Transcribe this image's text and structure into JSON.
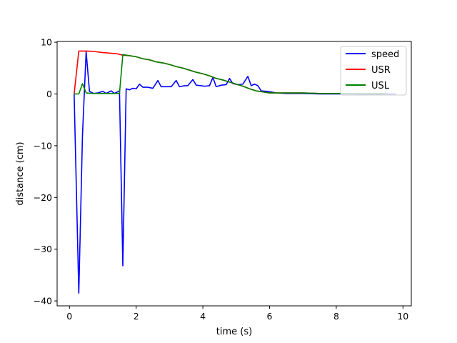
{
  "chart_data": {
    "type": "line",
    "title": "",
    "xlabel": "time (s)",
    "ylabel": "distance (cm)",
    "xlim": [
      -0.37,
      10.25
    ],
    "ylim": [
      -40.95,
      10.15
    ],
    "xticks": [
      0,
      2,
      4,
      6,
      8,
      10
    ],
    "yticks": [
      -40,
      -30,
      -20,
      -10,
      0,
      10
    ],
    "grid": false,
    "legend_position": "top-right",
    "series": [
      {
        "name": "speed",
        "color": "#0000ff",
        "points": [
          [
            0.14,
            0
          ],
          [
            0.28,
            -38.5
          ],
          [
            0.39,
            -8
          ],
          [
            0.5,
            8.2
          ],
          [
            0.6,
            0.5
          ],
          [
            0.72,
            0.1
          ],
          [
            0.85,
            0.2
          ],
          [
            1.0,
            0.5
          ],
          [
            1.1,
            0.1
          ],
          [
            1.25,
            0.6
          ],
          [
            1.35,
            0.1
          ],
          [
            1.5,
            0.6
          ],
          [
            1.6,
            -33.2
          ],
          [
            1.7,
            1.0
          ],
          [
            1.8,
            0.8
          ],
          [
            1.9,
            1.1
          ],
          [
            2.0,
            1.0
          ],
          [
            2.1,
            1.9
          ],
          [
            2.2,
            1.3
          ],
          [
            2.35,
            1.3
          ],
          [
            2.5,
            1.1
          ],
          [
            2.65,
            2.6
          ],
          [
            2.75,
            1.4
          ],
          [
            2.9,
            1.4
          ],
          [
            3.05,
            1.4
          ],
          [
            3.2,
            2.6
          ],
          [
            3.3,
            1.4
          ],
          [
            3.45,
            1.6
          ],
          [
            3.55,
            1.6
          ],
          [
            3.7,
            2.8
          ],
          [
            3.8,
            1.7
          ],
          [
            3.95,
            1.6
          ],
          [
            4.05,
            1.5
          ],
          [
            4.2,
            1.6
          ],
          [
            4.3,
            3.2
          ],
          [
            4.4,
            1.4
          ],
          [
            4.55,
            1.7
          ],
          [
            4.7,
            1.8
          ],
          [
            4.8,
            3.0
          ],
          [
            4.9,
            2.0
          ],
          [
            5.05,
            1.8
          ],
          [
            5.2,
            1.9
          ],
          [
            5.35,
            3.4
          ],
          [
            5.45,
            1.6
          ],
          [
            5.55,
            1.9
          ],
          [
            5.65,
            1.6
          ],
          [
            5.75,
            0.6
          ],
          [
            5.95,
            0.5
          ],
          [
            6.2,
            0.2
          ],
          [
            6.5,
            0.1
          ],
          [
            7.0,
            0.1
          ],
          [
            7.5,
            0.0
          ],
          [
            8.0,
            0.0
          ],
          [
            8.5,
            0.0
          ],
          [
            9.0,
            -0.1
          ],
          [
            9.5,
            0.0
          ],
          [
            9.8,
            0.0
          ]
        ]
      },
      {
        "name": "USR",
        "color": "#ff0000",
        "points": [
          [
            0.14,
            0
          ],
          [
            0.28,
            8.3
          ],
          [
            0.5,
            8.3
          ],
          [
            0.75,
            8.2
          ],
          [
            1.0,
            8.0
          ],
          [
            1.2,
            7.9
          ],
          [
            1.4,
            7.8
          ],
          [
            1.6,
            7.5
          ],
          [
            1.8,
            7.4
          ],
          [
            2.0,
            7.2
          ],
          [
            2.2,
            6.8
          ],
          [
            2.4,
            6.6
          ],
          [
            2.6,
            6.2
          ],
          [
            2.8,
            6.0
          ],
          [
            3.0,
            5.7
          ],
          [
            3.2,
            5.3
          ],
          [
            3.4,
            5.0
          ],
          [
            3.6,
            4.6
          ],
          [
            3.8,
            4.2
          ],
          [
            4.0,
            3.9
          ],
          [
            4.2,
            3.5
          ],
          [
            4.4,
            3.0
          ],
          [
            4.6,
            2.7
          ],
          [
            4.8,
            2.3
          ],
          [
            5.0,
            1.9
          ],
          [
            5.2,
            1.5
          ],
          [
            5.4,
            1.0
          ],
          [
            5.6,
            0.6
          ],
          [
            5.8,
            0.4
          ],
          [
            6.0,
            0.2
          ],
          [
            6.5,
            0.2
          ],
          [
            7.0,
            0.2
          ],
          [
            7.5,
            0.1
          ],
          [
            8.0,
            0.1
          ],
          [
            8.5,
            0.1
          ],
          [
            9.0,
            0.1
          ],
          [
            9.5,
            0.1
          ]
        ]
      },
      {
        "name": "USL",
        "color": "#008000",
        "points": [
          [
            0.14,
            0
          ],
          [
            0.28,
            0.0
          ],
          [
            0.39,
            2.0
          ],
          [
            0.5,
            0.2
          ],
          [
            0.7,
            0.1
          ],
          [
            1.0,
            0.1
          ],
          [
            1.3,
            0.1
          ],
          [
            1.5,
            0.1
          ],
          [
            1.6,
            7.6
          ],
          [
            1.8,
            7.4
          ],
          [
            2.0,
            7.2
          ],
          [
            2.2,
            6.8
          ],
          [
            2.4,
            6.6
          ],
          [
            2.6,
            6.2
          ],
          [
            2.8,
            6.0
          ],
          [
            3.0,
            5.7
          ],
          [
            3.2,
            5.3
          ],
          [
            3.4,
            5.0
          ],
          [
            3.6,
            4.6
          ],
          [
            3.8,
            4.2
          ],
          [
            4.0,
            3.9
          ],
          [
            4.2,
            3.5
          ],
          [
            4.4,
            3.0
          ],
          [
            4.6,
            2.7
          ],
          [
            4.8,
            2.3
          ],
          [
            5.0,
            1.9
          ],
          [
            5.2,
            1.5
          ],
          [
            5.4,
            1.0
          ],
          [
            5.6,
            0.6
          ],
          [
            5.8,
            0.4
          ],
          [
            6.0,
            0.2
          ],
          [
            6.5,
            0.2
          ],
          [
            7.0,
            0.2
          ],
          [
            7.5,
            0.1
          ],
          [
            8.0,
            0.1
          ],
          [
            8.5,
            0.1
          ],
          [
            9.0,
            0.1
          ],
          [
            9.5,
            0.1
          ]
        ]
      }
    ]
  }
}
